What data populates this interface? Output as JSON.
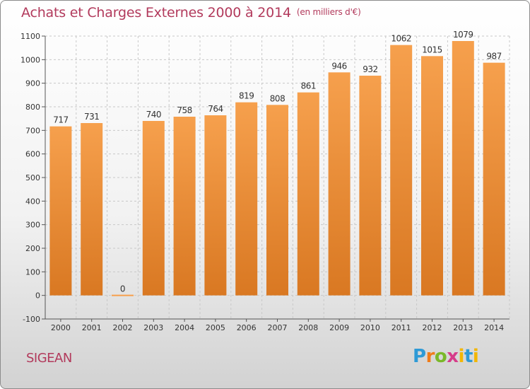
{
  "title": "Achats et Charges Externes 2000 à 2014",
  "unit_note": "(en milliers d'€)",
  "commune": "SIGEAN",
  "logo": {
    "text": "Proxiti",
    "letters": [
      {
        "char": "P",
        "color": "#2e9ad6"
      },
      {
        "char": "r",
        "color": "#f07c19"
      },
      {
        "char": "o",
        "color": "#7ab829"
      },
      {
        "char": "x",
        "color": "#d63c8a"
      },
      {
        "char": "i",
        "color": "#f2b705"
      },
      {
        "char": "t",
        "color": "#2e9ad6"
      },
      {
        "char": "i",
        "color": "#f2b705"
      }
    ]
  },
  "colors": {
    "title": "#b23a5c",
    "bar_light": "#f6a04d",
    "bar_dark": "#d97822",
    "grid": "#c8c8c8",
    "axis": "#555555"
  },
  "chart_data": {
    "type": "bar",
    "title": "Achats et Charges Externes 2000 à 2014",
    "subtitle": "(en milliers d'€)",
    "categories": [
      "2000",
      "2001",
      "2002",
      "2003",
      "2004",
      "2005",
      "2006",
      "2007",
      "2008",
      "2009",
      "2010",
      "2011",
      "2012",
      "2013",
      "2014"
    ],
    "values": [
      717,
      731,
      0,
      740,
      758,
      764,
      819,
      808,
      861,
      946,
      932,
      1062,
      1015,
      1079,
      987
    ],
    "data_labels": [
      "717",
      "731",
      "0",
      "740",
      "758",
      "764",
      "819",
      "808",
      "861",
      "946",
      "932",
      "1062",
      "1015",
      "1079",
      "987"
    ],
    "ylim": [
      -100,
      1100
    ],
    "yticks": [
      -100,
      0,
      100,
      200,
      300,
      400,
      500,
      600,
      700,
      800,
      900,
      1000,
      1100
    ],
    "grid": "horizontal dashed",
    "legend": "none"
  }
}
